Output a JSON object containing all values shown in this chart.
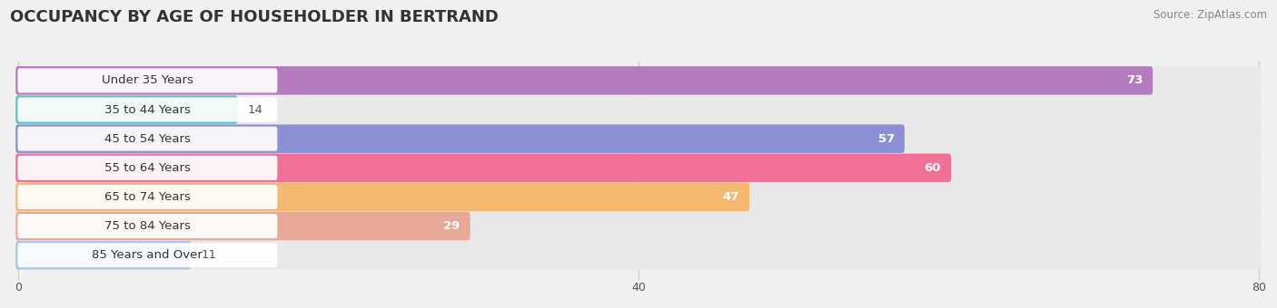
{
  "title": "OCCUPANCY BY AGE OF HOUSEHOLDER IN BERTRAND",
  "source": "Source: ZipAtlas.com",
  "categories": [
    "Under 35 Years",
    "35 to 44 Years",
    "45 to 54 Years",
    "55 to 64 Years",
    "65 to 74 Years",
    "75 to 84 Years",
    "85 Years and Over"
  ],
  "values": [
    73,
    14,
    57,
    60,
    47,
    29,
    11
  ],
  "bar_colors": [
    "#b57bbf",
    "#5ec4c0",
    "#8b8fd4",
    "#f07096",
    "#f5b870",
    "#e8a898",
    "#a8c4ef"
  ],
  "bar_bg_colors": [
    "#eeeeee",
    "#eeeeee",
    "#eeeeee",
    "#eeeeee",
    "#eeeeee",
    "#eeeeee",
    "#eeeeee"
  ],
  "xlim": [
    0,
    80
  ],
  "xticks": [
    0,
    40,
    80
  ],
  "title_fontsize": 13,
  "background_color": "#f0f0f0",
  "bar_height": 0.68,
  "label_fontsize": 9.5,
  "value_fontsize": 9.5
}
